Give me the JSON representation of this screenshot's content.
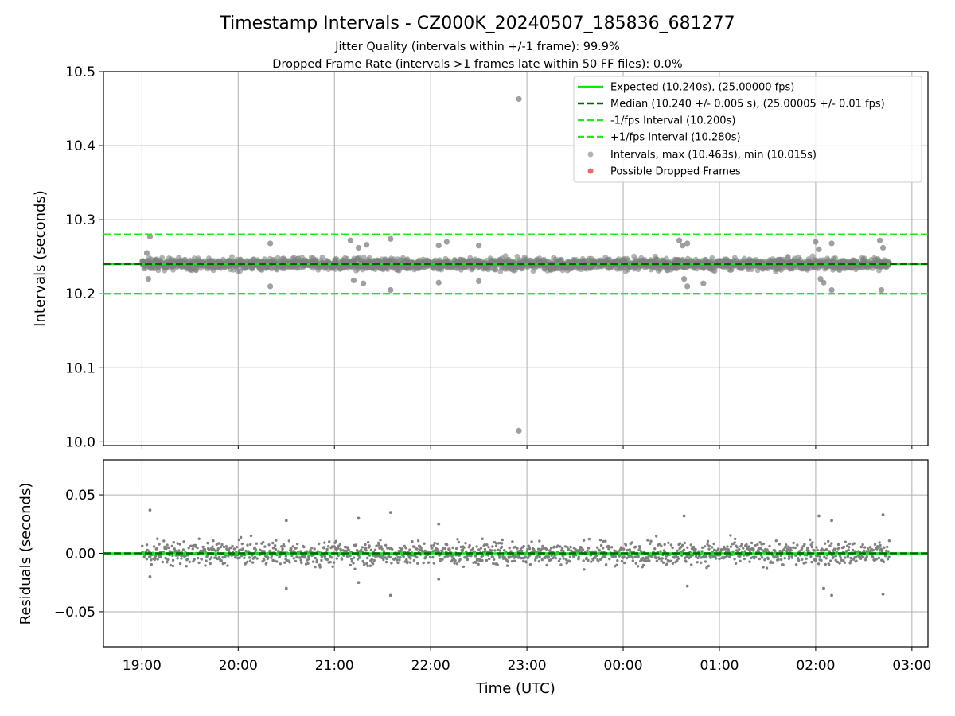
{
  "figure": {
    "title": "Timestamp Intervals - CZ000K_20240507_185836_681277",
    "subtitle_1": "Jitter Quality (intervals within +/-1 frame): 99.9%",
    "subtitle_2": "Dropped Frame Rate (intervals >1 frames late within 50 FF files): 0.0%"
  },
  "colors": {
    "expected": "#00ee00",
    "median": "#006400",
    "bounds": "#1ee81e",
    "points": "#808080",
    "dropped": "#ee6666",
    "grid": "#b0b0b0"
  },
  "chart_data": [
    {
      "type": "scatter",
      "panel": "intervals",
      "xlabel": "",
      "ylabel": "Intervals (seconds)",
      "xlim": [
        "18:36",
        "03:10"
      ],
      "ylim": [
        9.995,
        10.5
      ],
      "yticks": [
        10.0,
        10.1,
        10.2,
        10.3,
        10.4,
        10.5
      ],
      "ytick_labels": [
        "10.0",
        "10.1",
        "10.2",
        "10.3",
        "10.4",
        "10.5"
      ],
      "grid": true,
      "legend_position": "top-right",
      "reference_lines": [
        {
          "name": "Expected (10.240s), (25.00000 fps)",
          "y": 10.24,
          "style": "solid",
          "color": "#00ee00"
        },
        {
          "name": "Median (10.240 +/- 0.005 s), (25.00005 +/- 0.01 fps)",
          "y": 10.24,
          "style": "dashed",
          "color": "#006400"
        },
        {
          "name": "-1/fps Interval (10.200s)",
          "y": 10.2,
          "style": "dashed",
          "color": "#1ee81e"
        },
        {
          "name": "+1/fps Interval (10.280s)",
          "y": 10.28,
          "style": "dashed",
          "color": "#1ee81e"
        }
      ],
      "series": [
        {
          "name": "Intervals, max (10.463s), min (10.015s)",
          "color": "#808080",
          "marker": "circle",
          "x_range": [
            "19:00",
            "02:46"
          ],
          "center": 10.24,
          "spread": 0.005,
          "points": [
            {
              "x": "22:55",
              "y": 10.463
            },
            {
              "x": "22:55",
              "y": 10.015
            },
            {
              "x": "19:05",
              "y": 10.277
            },
            {
              "x": "19:03",
              "y": 10.255
            },
            {
              "x": "19:04",
              "y": 10.22
            },
            {
              "x": "20:20",
              "y": 10.268
            },
            {
              "x": "20:20",
              "y": 10.21
            },
            {
              "x": "21:10",
              "y": 10.272
            },
            {
              "x": "21:15",
              "y": 10.262
            },
            {
              "x": "21:12",
              "y": 10.218
            },
            {
              "x": "21:20",
              "y": 10.266
            },
            {
              "x": "21:18",
              "y": 10.214
            },
            {
              "x": "21:35",
              "y": 10.274
            },
            {
              "x": "21:35",
              "y": 10.205
            },
            {
              "x": "22:05",
              "y": 10.265
            },
            {
              "x": "22:10",
              "y": 10.27
            },
            {
              "x": "22:05",
              "y": 10.215
            },
            {
              "x": "22:30",
              "y": 10.265
            },
            {
              "x": "22:30",
              "y": 10.217
            },
            {
              "x": "00:35",
              "y": 10.272
            },
            {
              "x": "00:37",
              "y": 10.265
            },
            {
              "x": "00:38",
              "y": 10.22
            },
            {
              "x": "00:40",
              "y": 10.268
            },
            {
              "x": "00:40",
              "y": 10.21
            },
            {
              "x": "00:50",
              "y": 10.214
            },
            {
              "x": "02:00",
              "y": 10.27
            },
            {
              "x": "02:02",
              "y": 10.26
            },
            {
              "x": "02:03",
              "y": 10.22
            },
            {
              "x": "02:05",
              "y": 10.215
            },
            {
              "x": "02:10",
              "y": 10.268
            },
            {
              "x": "02:10",
              "y": 10.205
            },
            {
              "x": "02:40",
              "y": 10.272
            },
            {
              "x": "02:42",
              "y": 10.262
            },
            {
              "x": "02:41",
              "y": 10.205
            }
          ]
        },
        {
          "name": "Possible Dropped Frames",
          "color": "#ee6666",
          "marker": "circle",
          "points": []
        }
      ]
    },
    {
      "type": "scatter",
      "panel": "residuals",
      "xlabel": "Time (UTC)",
      "ylabel": "Residuals (seconds)",
      "xlim": [
        "18:36",
        "03:10"
      ],
      "ylim": [
        -0.08,
        0.08
      ],
      "xticks": [
        "19:00",
        "20:00",
        "21:00",
        "22:00",
        "23:00",
        "00:00",
        "01:00",
        "02:00",
        "03:00"
      ],
      "yticks": [
        -0.05,
        0.0,
        0.05
      ],
      "ytick_labels": [
        "−0.05",
        "0.00",
        "0.05"
      ],
      "grid": true,
      "reference_lines": [
        {
          "y": 0.0,
          "style": "solid",
          "color": "#00ee00"
        },
        {
          "y": 0.0,
          "style": "dashed",
          "color": "#006400"
        }
      ],
      "series": [
        {
          "name": "Residuals",
          "color": "#808080",
          "marker": "dot",
          "x_range": [
            "19:00",
            "02:46"
          ],
          "center": 0.0,
          "spread": 0.005,
          "points": [
            {
              "x": "19:05",
              "y": 0.037
            },
            {
              "x": "19:05",
              "y": -0.02
            },
            {
              "x": "20:30",
              "y": 0.028
            },
            {
              "x": "20:30",
              "y": -0.03
            },
            {
              "x": "21:15",
              "y": 0.03
            },
            {
              "x": "21:15",
              "y": -0.025
            },
            {
              "x": "21:35",
              "y": 0.035
            },
            {
              "x": "21:35",
              "y": -0.036
            },
            {
              "x": "22:05",
              "y": 0.025
            },
            {
              "x": "22:05",
              "y": -0.022
            },
            {
              "x": "00:38",
              "y": 0.032
            },
            {
              "x": "00:40",
              "y": -0.028
            },
            {
              "x": "02:02",
              "y": 0.032
            },
            {
              "x": "02:05",
              "y": -0.03
            },
            {
              "x": "02:10",
              "y": 0.028
            },
            {
              "x": "02:10",
              "y": -0.036
            },
            {
              "x": "02:42",
              "y": 0.033
            },
            {
              "x": "02:42",
              "y": -0.035
            }
          ]
        }
      ]
    }
  ]
}
